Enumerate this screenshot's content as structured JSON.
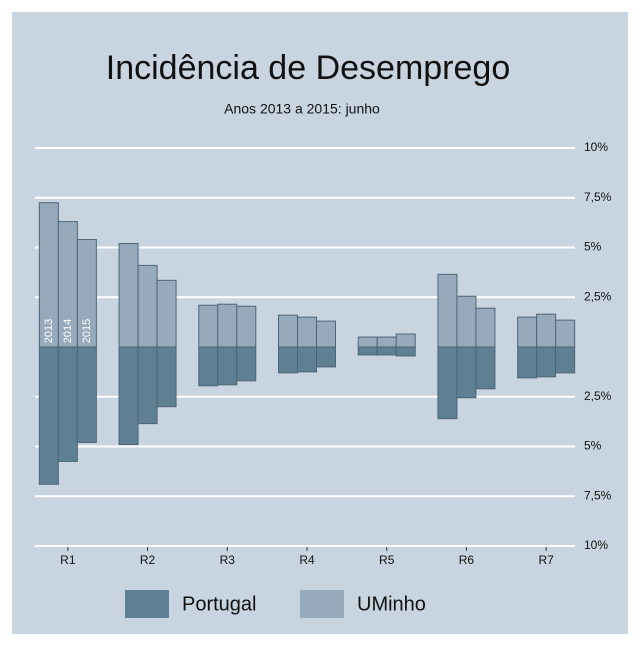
{
  "chart_data": {
    "type": "diverging-bar",
    "title": "Incidência de Desemprego",
    "subtitle": "Anos 2013 a 2015: junho",
    "categories": [
      "R1",
      "R2",
      "R3",
      "R4",
      "R5",
      "R6",
      "R7"
    ],
    "years": [
      "2013",
      "2014",
      "2015"
    ],
    "series": [
      {
        "name": "Portugal",
        "color": "#5f7f93",
        "values": [
          [
            -6.9,
            -5.75,
            -4.8
          ],
          [
            -4.9,
            -3.85,
            -3.0
          ],
          [
            -1.95,
            -1.9,
            -1.7
          ],
          [
            -1.3,
            -1.25,
            -1.0
          ],
          [
            -0.4,
            -0.4,
            -0.45
          ],
          [
            -3.6,
            -2.55,
            -2.1
          ],
          [
            -1.55,
            -1.5,
            -1.3
          ]
        ]
      },
      {
        "name": "UMinho",
        "color": "#97aabb",
        "values": [
          [
            7.25,
            6.3,
            5.4
          ],
          [
            5.2,
            4.1,
            3.35
          ],
          [
            2.1,
            2.15,
            2.05
          ],
          [
            1.6,
            1.5,
            1.3
          ],
          [
            0.5,
            0.5,
            0.65
          ],
          [
            3.65,
            2.55,
            1.95
          ],
          [
            1.5,
            1.65,
            1.35
          ]
        ]
      }
    ],
    "ylim": [
      -10,
      10
    ],
    "yticks": [
      {
        "value": 10,
        "label": "10%"
      },
      {
        "value": 7.5,
        "label": "7,5%"
      },
      {
        "value": 5,
        "label": "5%"
      },
      {
        "value": 2.5,
        "label": "2,5%"
      },
      {
        "value": -2.5,
        "label": "2,5%"
      },
      {
        "value": -5,
        "label": "5%"
      },
      {
        "value": -7.5,
        "label": "7,5%"
      },
      {
        "value": -10,
        "label": "10%"
      }
    ],
    "grid": true,
    "legend": "bottom"
  }
}
